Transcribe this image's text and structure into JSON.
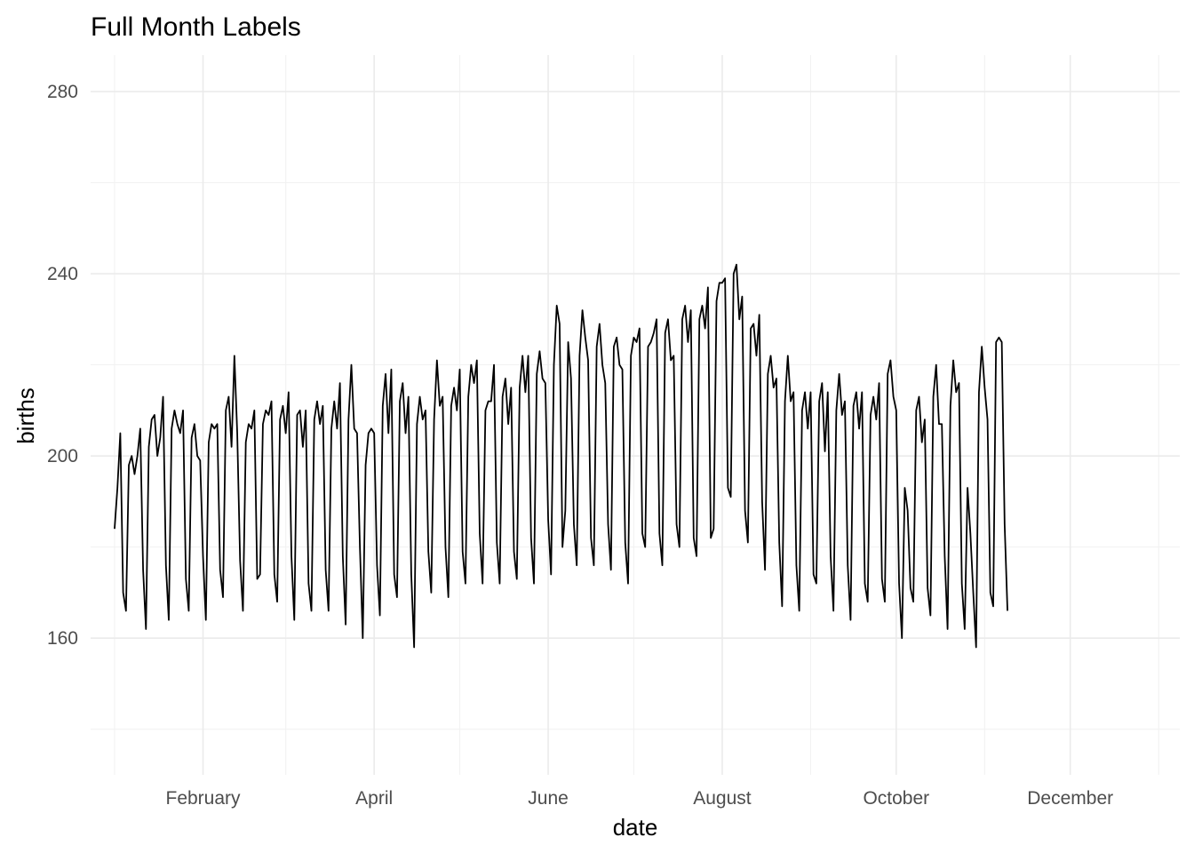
{
  "chart_data": {
    "type": "line",
    "title": "Full Month Labels",
    "xlabel": "date",
    "ylabel": "births",
    "ylim": [
      130,
      288
    ],
    "xlim": [
      "2000-01-01",
      "2000-12-31"
    ],
    "y_ticks": [
      160,
      200,
      240,
      280
    ],
    "y_minor_ticks": [
      140,
      180,
      220,
      260
    ],
    "x_ticks": [
      {
        "date": "2000-02-01",
        "label": "February"
      },
      {
        "date": "2000-04-01",
        "label": "April"
      },
      {
        "date": "2000-06-01",
        "label": "June"
      },
      {
        "date": "2000-08-01",
        "label": "August"
      },
      {
        "date": "2000-10-01",
        "label": "October"
      },
      {
        "date": "2000-12-01",
        "label": "December"
      }
    ],
    "x_minor_ticks": [
      "2000-01-01",
      "2000-03-01",
      "2000-05-01",
      "2000-07-01",
      "2000-09-01",
      "2000-11-01",
      "2001-01-01"
    ],
    "grid": true,
    "legend": "none",
    "line_color": "#000000",
    "series": [
      {
        "x_start": "2000-01-01",
        "x_step": "1 day",
        "values": [
          184,
          193,
          205,
          170,
          166,
          198,
          200,
          196,
          200,
          206,
          175,
          162,
          202,
          208,
          209,
          200,
          204,
          213,
          176,
          164,
          206,
          210,
          207,
          205,
          210,
          173,
          166,
          204,
          207,
          200,
          199,
          178,
          164,
          203,
          207,
          206,
          207,
          175,
          169,
          210,
          213,
          202,
          222,
          205,
          177,
          166,
          203,
          207,
          206,
          210,
          173,
          174,
          207,
          210,
          209,
          212,
          174,
          168,
          208,
          211,
          205,
          214,
          178,
          164,
          209,
          210,
          202,
          210,
          172,
          166,
          208,
          212,
          207,
          211,
          175,
          166,
          206,
          212,
          206,
          216,
          178,
          163,
          208,
          220,
          206,
          205,
          180,
          160,
          198,
          205,
          206,
          205,
          176,
          165,
          211,
          218,
          205,
          219,
          174,
          169,
          212,
          216,
          205,
          213,
          174,
          158,
          207,
          213,
          208,
          210,
          179,
          170,
          208,
          221,
          211,
          213,
          180,
          169,
          211,
          215,
          210,
          219,
          179,
          172,
          213,
          220,
          216,
          221,
          183,
          172,
          210,
          212,
          212,
          220,
          181,
          172,
          213,
          217,
          207,
          215,
          179,
          173,
          215,
          222,
          214,
          222,
          182,
          172,
          218,
          223,
          217,
          216,
          186,
          174,
          220,
          233,
          229,
          180,
          188,
          225,
          217,
          185,
          176,
          222,
          232,
          226,
          221,
          182,
          176,
          224,
          229,
          220,
          216,
          185,
          175,
          224,
          226,
          220,
          219,
          181,
          172,
          222,
          226,
          225,
          228,
          183,
          180,
          224,
          225,
          227,
          230,
          183,
          176,
          227,
          230,
          221,
          222,
          185,
          180,
          230,
          233,
          225,
          232,
          182,
          178,
          230,
          233,
          228,
          237,
          182,
          184,
          234,
          238,
          238,
          239,
          193,
          191,
          240,
          242,
          230,
          235,
          188,
          181,
          228,
          229,
          222,
          231,
          190,
          175,
          218,
          222,
          215,
          217,
          181,
          167,
          212,
          222,
          212,
          214,
          176,
          166,
          210,
          214,
          206,
          214,
          174,
          172,
          212,
          216,
          201,
          214,
          178,
          166,
          210,
          218,
          209,
          212,
          176,
          164,
          211,
          214,
          206,
          214,
          172,
          168,
          209,
          213,
          208,
          216,
          173,
          168,
          218,
          221,
          213,
          210,
          172,
          160,
          193,
          188,
          171,
          168,
          210,
          213,
          203,
          208,
          171,
          165,
          213,
          220,
          207,
          207,
          178,
          162,
          211,
          221,
          214,
          216,
          172,
          162,
          193,
          183,
          170,
          158,
          214,
          224,
          215,
          208,
          170,
          167,
          225,
          226,
          225,
          185,
          166
        ]
      }
    ]
  }
}
